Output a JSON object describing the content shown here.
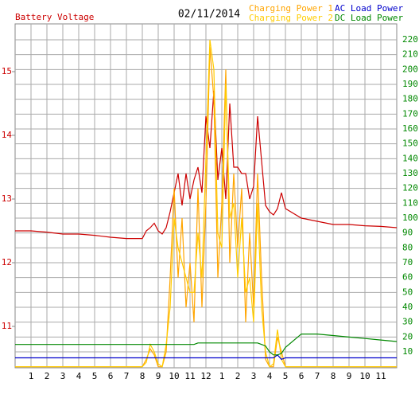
{
  "chart_data": {
    "type": "line",
    "title": "02/11/2014",
    "x": [
      0,
      1,
      2,
      3,
      4,
      5,
      6,
      7,
      8,
      8.25,
      8.5,
      8.75,
      9,
      9.25,
      9.5,
      9.75,
      10,
      10.25,
      10.5,
      10.75,
      11,
      11.25,
      11.5,
      11.75,
      12,
      12.25,
      12.5,
      12.75,
      13,
      13.25,
      13.5,
      13.75,
      14,
      14.25,
      14.5,
      14.75,
      15,
      15.25,
      15.5,
      15.75,
      16,
      16.25,
      16.5,
      16.75,
      17,
      18,
      19,
      20,
      21,
      22,
      23,
      24
    ],
    "xlim": [
      0,
      24
    ],
    "xticks": [
      1,
      2,
      3,
      4,
      5,
      6,
      7,
      8,
      9,
      10,
      11,
      12,
      {
        "value": 13,
        "label": "1"
      },
      {
        "value": 14,
        "label": "2"
      },
      {
        "value": 15,
        "label": "3"
      },
      {
        "value": 16,
        "label": "4"
      },
      {
        "value": 17,
        "label": "5"
      },
      {
        "value": 18,
        "label": "6"
      },
      {
        "value": 19,
        "label": "7"
      },
      {
        "value": 20,
        "label": "8"
      },
      {
        "value": 21,
        "label": "9"
      },
      {
        "value": 22,
        "label": "10"
      },
      {
        "value": 23,
        "label": "11"
      }
    ],
    "ylim": [
      10.35,
      15.75
    ],
    "yticks": [
      11,
      12,
      13,
      14,
      15
    ],
    "y2lim": [
      -0.7,
      230.7
    ],
    "y2ticks": [
      10,
      20,
      30,
      40,
      50,
      60,
      70,
      80,
      90,
      100,
      110,
      120,
      130,
      140,
      150,
      160,
      170,
      180,
      190,
      200,
      210,
      220
    ],
    "grid": true,
    "series": [
      {
        "name": "Battery Voltage",
        "color": "#cc0000",
        "values": [
          12.5,
          12.5,
          12.48,
          12.45,
          12.45,
          12.43,
          12.4,
          12.38,
          12.38,
          12.5,
          12.55,
          12.62,
          12.5,
          12.45,
          12.55,
          12.8,
          13.1,
          13.4,
          12.9,
          13.4,
          13.0,
          13.3,
          13.5,
          13.1,
          14.3,
          13.8,
          14.7,
          13.3,
          13.8,
          13.0,
          14.5,
          13.5,
          13.5,
          13.4,
          13.4,
          13.0,
          13.2,
          14.3,
          13.6,
          12.9,
          12.8,
          12.75,
          12.85,
          13.1,
          12.85,
          12.7,
          12.65,
          12.6,
          12.6,
          12.58,
          12.57,
          12.55
        ]
      },
      {
        "name": "Charging Power 1",
        "color": "#ffa500",
        "axis": "y2",
        "values": [
          0,
          0,
          0,
          0,
          0,
          0,
          0,
          0,
          0,
          5,
          12,
          8,
          0,
          0,
          10,
          60,
          120,
          60,
          100,
          40,
          70,
          30,
          120,
          40,
          110,
          215,
          180,
          60,
          110,
          200,
          70,
          130,
          80,
          120,
          30,
          90,
          40,
          130,
          60,
          5,
          0,
          0,
          20,
          10,
          0,
          0,
          0,
          0,
          0,
          0,
          0,
          0
        ]
      },
      {
        "name": "Charging Power 2",
        "color": "#ffcc00",
        "axis": "y2",
        "values": [
          0,
          0,
          0,
          0,
          0,
          0,
          0,
          0,
          0,
          3,
          15,
          10,
          2,
          0,
          15,
          40,
          100,
          80,
          70,
          60,
          50,
          50,
          90,
          60,
          140,
          220,
          200,
          90,
          80,
          190,
          100,
          110,
          60,
          100,
          50,
          60,
          30,
          110,
          40,
          10,
          0,
          2,
          25,
          5,
          0,
          0,
          0,
          0,
          0,
          0,
          0,
          0
        ]
      },
      {
        "name": "AC Load Power",
        "color": "#0000cc",
        "axis": "y2",
        "values": [
          6,
          6,
          6,
          6,
          6,
          6,
          6,
          6,
          6,
          6,
          6,
          6,
          6,
          6,
          6,
          6,
          6,
          6,
          6,
          6,
          6,
          6,
          6,
          6,
          6,
          6,
          6,
          6,
          6,
          6,
          6,
          6,
          6,
          6,
          6,
          6,
          6,
          6,
          6,
          6,
          6,
          6,
          8,
          5,
          6,
          6,
          6,
          6,
          6,
          6,
          6,
          6
        ]
      },
      {
        "name": "DC Load Power",
        "color": "#008800",
        "axis": "y2",
        "values": [
          15,
          15,
          15,
          15,
          15,
          15,
          15,
          15,
          15,
          15,
          15,
          15,
          15,
          15,
          15,
          15,
          15,
          15,
          15,
          15,
          15,
          15,
          16,
          16,
          16,
          16,
          16,
          16,
          16,
          16,
          16,
          16,
          16,
          16,
          16,
          16,
          16,
          16,
          15,
          14,
          10,
          8,
          8,
          9,
          13,
          22,
          22,
          21,
          20,
          19,
          18,
          17
        ]
      }
    ]
  }
}
